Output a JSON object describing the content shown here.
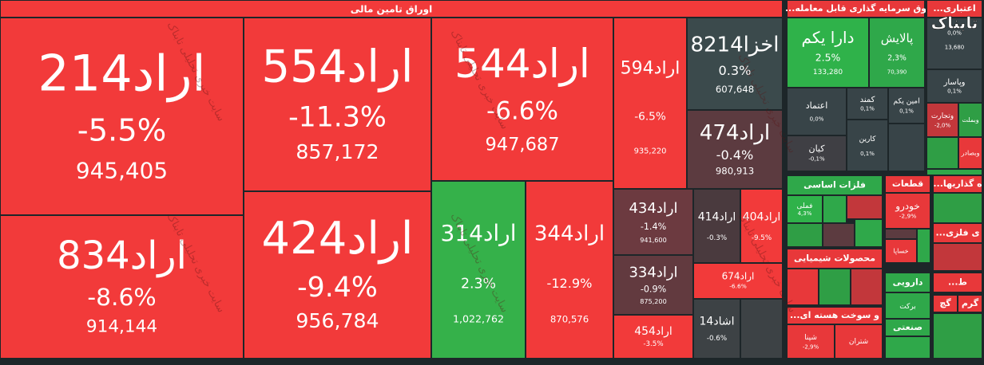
{
  "header": {
    "title": "اوراق تامین مالی"
  },
  "tiles": [
    {
      "name": "اراد214",
      "change": "-5.5%",
      "volume": "945,405",
      "color": "#f23a3a"
    },
    {
      "name": "اراد834",
      "change": "-8.6%",
      "volume": "914,144",
      "color": "#f23a3a"
    },
    {
      "name": "اراد554",
      "change": "-11.3%",
      "volume": "857,172",
      "color": "#f23a3a"
    },
    {
      "name": "اراد424",
      "change": "-9.4%",
      "volume": "956,784",
      "color": "#f23a3a"
    },
    {
      "name": "اراد544",
      "change": "-6.6%",
      "volume": "947,687",
      "color": "#f23a3a"
    },
    {
      "name": "اراد314",
      "change": "2.3%",
      "volume": "1,022,762",
      "color": "#35b14a"
    },
    {
      "name": "اراد344",
      "change": "-12.9%",
      "volume": "870,576",
      "color": "#f23a3a"
    },
    {
      "name": "اراد594",
      "change": "-6.5%",
      "volume": "935,220",
      "color": "#f23a3a"
    },
    {
      "name": "اخزا8214",
      "change": "0.3%",
      "volume": "607,648",
      "color": "#3b4a4c"
    },
    {
      "name": "اراد474",
      "change": "-0.4%",
      "volume": "980,913",
      "color": "#5c3b40"
    },
    {
      "name": "اراد434",
      "change": "-1.4%",
      "volume": "941,600",
      "color": "#6c3a40"
    },
    {
      "name": "اراد334",
      "change": "-0.9%",
      "volume": "875,200",
      "color": "#623a3f"
    },
    {
      "name": "اراد454",
      "change": "-3.5%",
      "color": "#f23a3a"
    },
    {
      "name": "اراد414",
      "change": "-0.3%",
      "color": "#4a3a3e"
    },
    {
      "name": "اراد404",
      "change": "-9.5%",
      "color": "#f23a3a"
    },
    {
      "name": "اراد674",
      "change": "-6.6%",
      "color": "#f23a3a"
    },
    {
      "name": "اشاد14",
      "change": "-0.6%",
      "color": "#3d4245"
    }
  ],
  "groups": [
    {
      "title": "...وق سرمایه گذاری قابل معامله",
      "color": "#e8383a",
      "tiles": [
        {
          "name": "دارا یکم",
          "change": "2.5%",
          "volume": "133,280",
          "color": "#2fb24a"
        },
        {
          "name": "پالایش",
          "change": "2,3%",
          "volume": "70,390",
          "color": "#2fa84a"
        },
        {
          "name": "اعتماد",
          "change": "0,0%",
          "color": "#384448"
        },
        {
          "name": "کمند",
          "change": "0,1%",
          "color": "#384448"
        },
        {
          "name": "امین یکم",
          "change": "0,1%",
          "color": "#384448"
        },
        {
          "name": "کیان",
          "change": "-0,1%",
          "color": "#3f3f44"
        },
        {
          "name": "کارین",
          "change": "0,1%",
          "color": "#384448"
        }
      ]
    },
    {
      "title": "...اعتباری",
      "color": "#e8383a",
      "tiles": [
        {
          "change": "0,0%",
          "volume": "13,680",
          "color": "#384448"
        },
        {
          "name": "وپاسار",
          "change": "0,1%",
          "color": "#384448"
        },
        {
          "name": "وتجارت",
          "change": "-2,0%",
          "color": "#c2373b"
        },
        {
          "name": "وبملت",
          "color": "#2f9e45"
        },
        {
          "name": "وبصادر",
          "color": "#e8383a"
        }
      ]
    },
    {
      "title": "فلزات اساسی",
      "color": "#2fa84a",
      "tiles": [
        {
          "name": "فملی",
          "change": "4,3%",
          "color": "#2fb24a"
        }
      ]
    },
    {
      "title": "قطعات",
      "color": "#e8383a",
      "tiles": [
        {
          "name": "خودرو",
          "change": "-2,9%",
          "color": "#e8383a"
        },
        {
          "name": "خساپا",
          "color": "#e8383a"
        }
      ]
    },
    {
      "title": "...ه گذاریها",
      "color": "#e8383a"
    },
    {
      "title": "...ی فلزی",
      "color": "#e8383a"
    },
    {
      "title": "محصولات شیمیایی",
      "color": "#e8383a"
    },
    {
      "title": "دارویی",
      "color": "#2fa84a",
      "tiles": [
        {
          "name": "برکت",
          "color": "#2fa84a"
        }
      ]
    },
    {
      "title": "...ط",
      "color": "#e8383a"
    },
    {
      "title": "گچ",
      "color": "#e8383a"
    },
    {
      "title": "گرم",
      "color": "#e8383a"
    },
    {
      "title": "...و سوخت هسته ای",
      "color": "#e8383a",
      "tiles": [
        {
          "name": "شپنا",
          "change": "-2,9%",
          "color": "#e8383a"
        },
        {
          "name": "شتران",
          "color": "#e8383a"
        }
      ]
    },
    {
      "title": "صنعتی",
      "color": "#2fa84a"
    }
  ],
  "watermark": {
    "text": "سایت خبری تحلیلی تابناک",
    "logo": "تابناک"
  }
}
